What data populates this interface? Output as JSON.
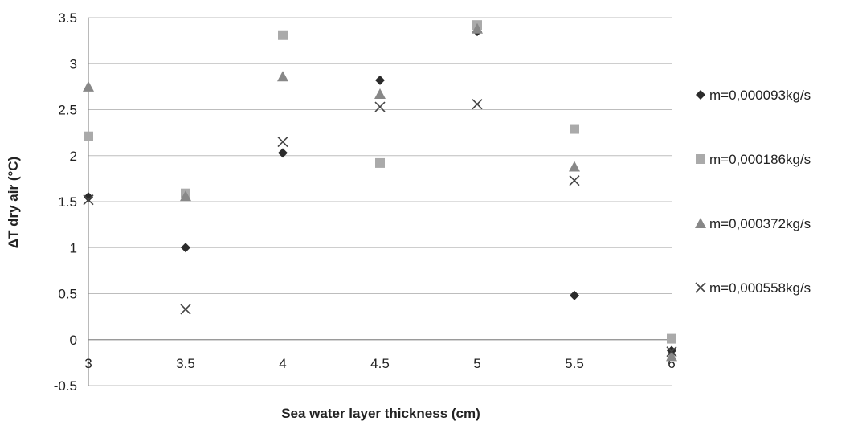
{
  "chart_data": {
    "type": "scatter",
    "xlabel": "Sea water layer thickness (cm)",
    "ylabel": "ΔT dry air (°C)",
    "xlim": [
      3,
      6
    ],
    "ylim": [
      -0.5,
      3.5
    ],
    "xticks": [
      "3",
      "3.5",
      "4",
      "4.5",
      "5",
      "5.5",
      "6"
    ],
    "yticks": [
      "-0.5",
      "0",
      "0.5",
      "1",
      "1.5",
      "2",
      "2.5",
      "3",
      "3.5"
    ],
    "grid": "horizontal",
    "legend": "right",
    "series": [
      {
        "name": "m=0,000093kg/s",
        "marker": "diamond",
        "color": "#2b2b2b",
        "x": [
          3,
          3.5,
          4,
          4.5,
          5,
          5.5,
          6
        ],
        "y": [
          1.55,
          1.0,
          2.03,
          2.82,
          3.35,
          0.48,
          -0.12
        ]
      },
      {
        "name": "m=0,000186kg/s",
        "marker": "square",
        "color": "#aaaaaa",
        "x": [
          3,
          3.5,
          4,
          4.5,
          5,
          5.5,
          6
        ],
        "y": [
          2.21,
          1.59,
          3.31,
          1.92,
          3.42,
          2.29,
          0.01
        ]
      },
      {
        "name": "m=0,000372kg/s",
        "marker": "triangle",
        "color": "#888888",
        "x": [
          3,
          3.5,
          4,
          4.5,
          5,
          5.5,
          6
        ],
        "y": [
          2.75,
          1.56,
          2.86,
          2.67,
          3.38,
          1.88,
          -0.18
        ]
      },
      {
        "name": "m=0,000558kg/s",
        "marker": "cross",
        "color": "#444444",
        "x": [
          3,
          3.5,
          4,
          4.5,
          5,
          5.5,
          6
        ],
        "y": [
          1.52,
          0.33,
          2.15,
          2.53,
          2.56,
          1.73,
          -0.13
        ]
      }
    ]
  }
}
